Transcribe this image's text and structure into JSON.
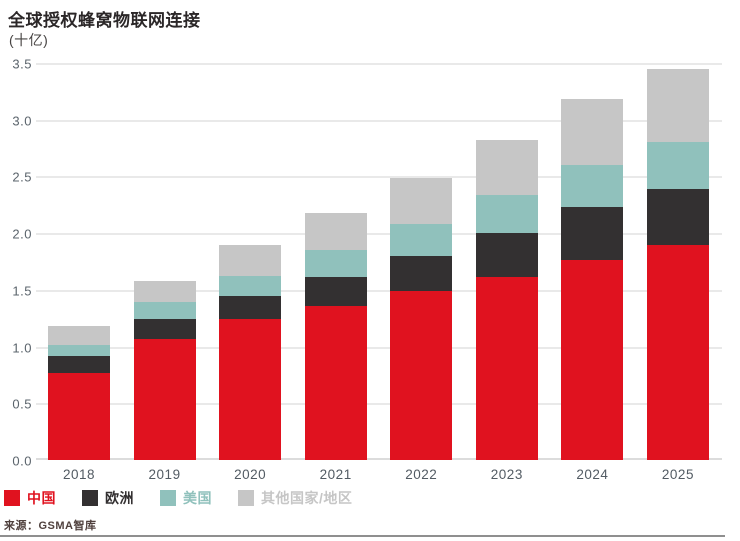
{
  "header": {
    "title": "全球授权蜂窝物联网连接",
    "subtitle": "(十亿)"
  },
  "source_line": "来源：GSMA智库",
  "chart_data": {
    "type": "bar",
    "stacked": true,
    "title": "全球授权蜂窝物联网连接",
    "unit_label": "(十亿)",
    "categories": [
      "2018",
      "2019",
      "2020",
      "2021",
      "2022",
      "2023",
      "2024",
      "2025"
    ],
    "series": [
      {
        "name": "中国",
        "color": "#e0121f",
        "values": [
          0.77,
          1.07,
          1.24,
          1.36,
          1.49,
          1.61,
          1.76,
          1.9
        ]
      },
      {
        "name": "欧洲",
        "color": "#333031",
        "values": [
          0.15,
          0.17,
          0.21,
          0.25,
          0.31,
          0.39,
          0.47,
          0.49
        ]
      },
      {
        "name": "美国",
        "color": "#90c1bc",
        "values": [
          0.09,
          0.15,
          0.17,
          0.24,
          0.28,
          0.34,
          0.37,
          0.41
        ]
      },
      {
        "name": "其他国家/地区",
        "color": "#c6c6c6",
        "values": [
          0.17,
          0.19,
          0.28,
          0.33,
          0.41,
          0.48,
          0.58,
          0.65
        ]
      }
    ],
    "totals": [
      1.18,
      1.58,
      1.9,
      2.18,
      2.49,
      2.82,
      3.18,
      3.45
    ],
    "ylim": [
      0,
      3.5
    ],
    "yticks": [
      "3.5",
      "3.0",
      "2.5",
      "2.0",
      "1.5",
      "1.0",
      "0.5",
      "0.0"
    ],
    "grid": "horizontal",
    "legend_position": "bottom"
  },
  "colors": {
    "grid": "#e9e9e9",
    "axis_text": "#5b646c",
    "title_text": "#2b2728",
    "source_text": "#4f403d",
    "rule": "#8f8f8f"
  }
}
